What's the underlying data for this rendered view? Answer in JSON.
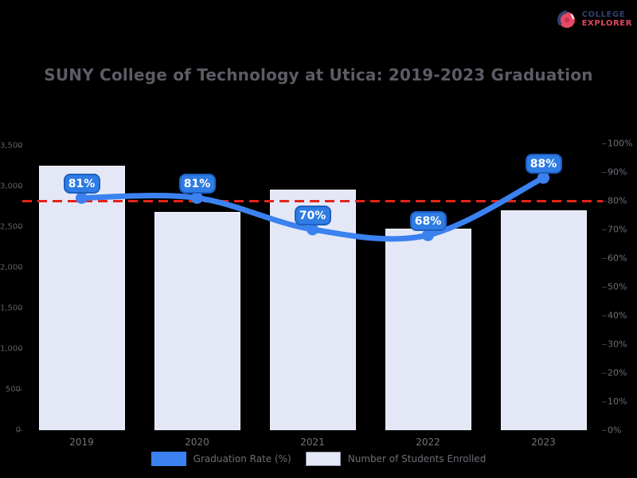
{
  "title": "SUNY College of Technology at Utica: 2019-2023 Graduation",
  "brand": {
    "line1": "COLLEGE",
    "line2": "EXPLORER",
    "icon_color": "#e64a62",
    "navy": "#31406e"
  },
  "legend": [
    {
      "label": "Graduation Rate (%)",
      "color": "#3b82f0"
    },
    {
      "label": "Number of Students Enrolled",
      "color": "#e4e8f6"
    }
  ],
  "chart_data": {
    "type": "bar",
    "subtype": "bar+line combo, dual axis",
    "categories": [
      "2019",
      "2020",
      "2021",
      "2022",
      "2023"
    ],
    "series": [
      {
        "name": "Graduation Rate (%)",
        "type": "line",
        "axis": "right",
        "values": [
          81,
          81,
          70,
          68,
          88
        ],
        "color": "#3b82f0"
      },
      {
        "name": "Number of Students Enrolled",
        "type": "bar",
        "axis": "left",
        "values": [
          3255,
          2685,
          2960,
          2480,
          2705
        ],
        "color": "#e4e8f6"
      }
    ],
    "data_labels": [
      "81%",
      "81%",
      "70%",
      "68%",
      "88%"
    ],
    "left_axis": {
      "min": 0,
      "max": 3500,
      "ticks": [
        "3,500",
        "3,000",
        "2,500",
        "2,000",
        "1,500",
        "1,000",
        "500",
        "0"
      ]
    },
    "right_axis": {
      "min": 0,
      "max": 100,
      "ticks": [
        "100%",
        "90%",
        "80%",
        "70%",
        "60%",
        "50%",
        "40%",
        "30%",
        "20%",
        "10%",
        "0%"
      ]
    },
    "reference_line": {
      "value": 80,
      "axis": "right",
      "color": "#e6231a",
      "style": "dashed"
    },
    "grid": false,
    "legend_position": "bottom",
    "background": "#000000"
  }
}
